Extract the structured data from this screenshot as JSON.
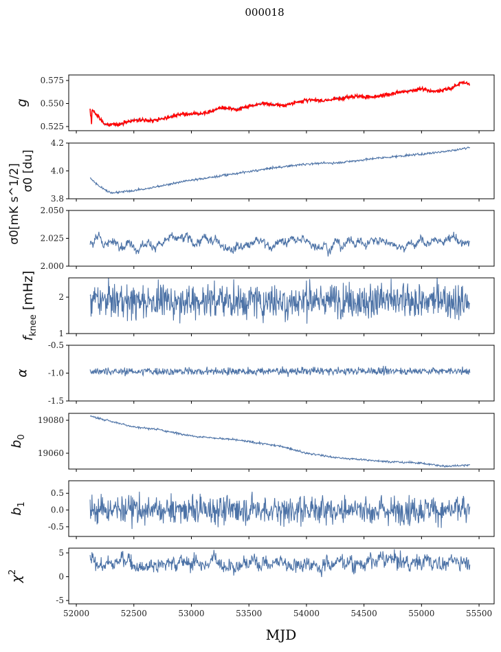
{
  "chart_data": {
    "type": "line",
    "title": "000018",
    "xlabel": "MJD",
    "xlim": [
      51934,
      55631
    ],
    "xticks": [
      52000,
      52500,
      53000,
      53500,
      54000,
      54500,
      55000,
      55500
    ],
    "x_range": [
      52120,
      55420
    ],
    "colors": {
      "line": "#4c72a6",
      "overlay": "#ff0000"
    },
    "panels": [
      {
        "ylabel": "g",
        "ylim": [
          0.5205,
          0.581
        ],
        "yticks": [
          "0.525",
          "0.550",
          "0.575"
        ],
        "noise": 0.0006,
        "walk": 0,
        "trend": [
          [
            52120,
            0.545
          ],
          [
            52160,
            0.54
          ],
          [
            52250,
            0.527
          ],
          [
            52350,
            0.527
          ],
          [
            52500,
            0.532
          ],
          [
            52700,
            0.532
          ],
          [
            52900,
            0.538
          ],
          [
            53100,
            0.539
          ],
          [
            53250,
            0.545
          ],
          [
            53400,
            0.544
          ],
          [
            53600,
            0.55
          ],
          [
            53800,
            0.548
          ],
          [
            54000,
            0.554
          ],
          [
            54150,
            0.553
          ],
          [
            54400,
            0.558
          ],
          [
            54600,
            0.557
          ],
          [
            54800,
            0.562
          ],
          [
            55000,
            0.566
          ],
          [
            55100,
            0.563
          ],
          [
            55250,
            0.566
          ],
          [
            55350,
            0.573
          ],
          [
            55420,
            0.571
          ]
        ],
        "overlay": true
      },
      {
        "ylabel": "σ0 [du]",
        "ylim": [
          3.8,
          4.2
        ],
        "yticks": [
          "3.8",
          "4.0",
          "4.2"
        ],
        "noise": 0.004,
        "walk": 0,
        "trend": [
          [
            52120,
            3.95
          ],
          [
            52200,
            3.89
          ],
          [
            52300,
            3.84
          ],
          [
            52600,
            3.87
          ],
          [
            52900,
            3.92
          ],
          [
            53300,
            3.97
          ],
          [
            53700,
            4.02
          ],
          [
            54000,
            4.05
          ],
          [
            54300,
            4.06
          ],
          [
            54600,
            4.09
          ],
          [
            55000,
            4.12
          ],
          [
            55300,
            4.15
          ],
          [
            55420,
            4.17
          ]
        ]
      },
      {
        "ylabel": "σ0[mK s^1/2]",
        "ylim": [
          2.0,
          2.05
        ],
        "yticks": [
          "2.000",
          "2.025",
          "2.050"
        ],
        "noise": 0.0015,
        "walk": 0.004,
        "trend": [
          [
            52120,
            2.021
          ],
          [
            55420,
            2.022
          ]
        ]
      },
      {
        "ylabel": "f_knee [mHz]",
        "ylim": [
          1,
          2.53
        ],
        "yticks": [
          "1",
          "2"
        ],
        "noise": 0.25,
        "walk": 0,
        "trend": [
          [
            52120,
            1.9
          ],
          [
            55420,
            1.9
          ]
        ]
      },
      {
        "ylabel": "α",
        "ylim": [
          -1.5,
          -0.5
        ],
        "yticks": [
          "-1.5",
          "-1.0",
          "-0.5"
        ],
        "noise": 0.035,
        "walk": 0,
        "trend": [
          [
            52120,
            -0.97
          ],
          [
            55420,
            -0.96
          ]
        ]
      },
      {
        "ylabel": "b0",
        "ylim": [
          19050.4,
          19084.2
        ],
        "yticks": [
          "19060",
          "19080"
        ],
        "noise": 0.3,
        "walk": 0,
        "trend": [
          [
            52120,
            19082.5
          ],
          [
            52500,
            19076
          ],
          [
            52700,
            19074.5
          ],
          [
            53000,
            19070.5
          ],
          [
            53400,
            19068
          ],
          [
            53800,
            19064
          ],
          [
            54000,
            19060
          ],
          [
            54300,
            19057
          ],
          [
            54700,
            19055
          ],
          [
            55000,
            19054
          ],
          [
            55200,
            19052
          ],
          [
            55420,
            19053
          ]
        ]
      },
      {
        "ylabel": "b1",
        "ylim": [
          -0.79,
          0.875
        ],
        "yticks": [
          "-0.5",
          "0.0",
          "0.5"
        ],
        "noise": 0.22,
        "walk": 0,
        "trend": [
          [
            52120,
            0
          ],
          [
            55420,
            0
          ]
        ]
      },
      {
        "ylabel": "χ2",
        "ylim": [
          -5.7,
          6.0
        ],
        "yticks": [
          "-5",
          "0",
          "5"
        ],
        "noise": 0.7,
        "walk": 1.1,
        "trend": [
          [
            52120,
            3
          ],
          [
            55420,
            3.2
          ]
        ]
      }
    ]
  }
}
